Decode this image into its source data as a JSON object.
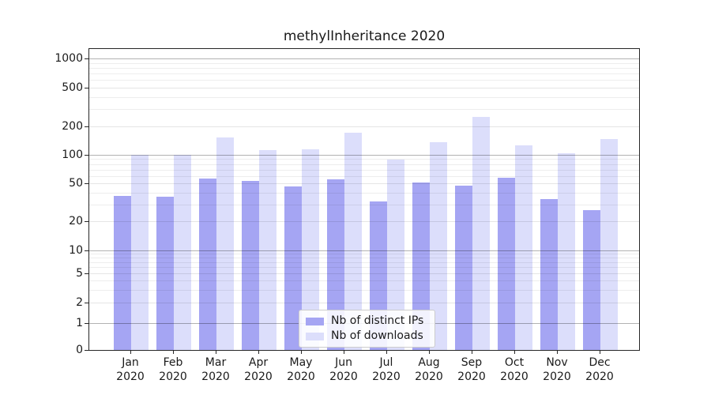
{
  "title": "methylInheritance 2020",
  "chart_data": {
    "type": "bar",
    "title": "methylInheritance 2020",
    "x": {
      "categories": [
        "Jan",
        "Feb",
        "Mar",
        "Apr",
        "May",
        "Jun",
        "Jul",
        "Aug",
        "Sep",
        "Oct",
        "Nov",
        "Dec"
      ],
      "year": "2020"
    },
    "y": {
      "scale": "symlog",
      "tick_labels": [
        "1000",
        "500",
        "200",
        "100",
        "50",
        "20",
        "10",
        "5",
        "2",
        "1",
        "0"
      ],
      "tick_values": [
        1000,
        500,
        200,
        100,
        50,
        20,
        10,
        5,
        2,
        1,
        0
      ],
      "range": [
        0,
        1000
      ],
      "minor_grid_values": [
        3,
        4,
        6,
        7,
        8,
        9,
        30,
        40,
        60,
        70,
        80,
        90,
        300,
        400,
        600,
        700,
        800,
        900
      ],
      "light_major_values": [
        2,
        5,
        20,
        50,
        200,
        500
      ],
      "dark_major_values": [
        1,
        10,
        100,
        1000
      ]
    },
    "series": [
      {
        "name": "Nb of distinct IPs",
        "color": "#a5a5f3",
        "values": [
          37,
          36,
          56,
          53,
          46,
          55,
          32,
          51,
          47,
          57,
          34,
          26
        ]
      },
      {
        "name": "Nb of downloads",
        "color": "#dcdefb",
        "values": [
          100,
          100,
          151,
          113,
          114,
          170,
          89,
          135,
          250,
          126,
          103,
          145
        ]
      }
    ],
    "legend": {
      "entries": [
        "Nb of distinct IPs",
        "Nb of downloads"
      ],
      "position": "bottom-center"
    },
    "grid": true
  }
}
